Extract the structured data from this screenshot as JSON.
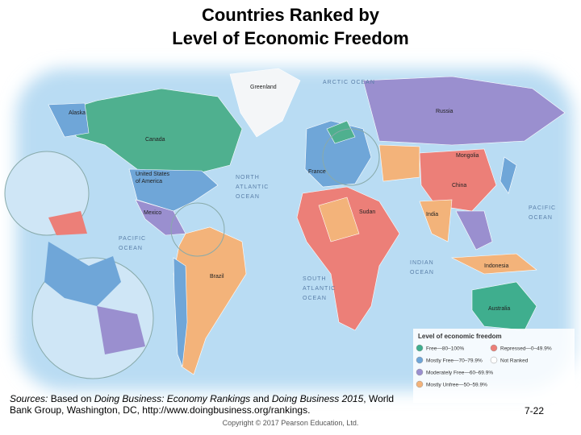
{
  "header": {
    "title_lines": [
      "Countries Ranked by",
      "Level of Economic Freedom"
    ]
  },
  "map": {
    "labels": {
      "arctic": "ARCTIC OCEAN",
      "greenland": "Greenland",
      "alaska": "Alaska",
      "canada": "Canada",
      "usa_1": "United States",
      "usa_2": "of America",
      "north_atlantic": [
        "NORTH",
        "ATLANTIC",
        "OCEAN"
      ],
      "pacific_west": [
        "PACIFIC",
        "OCEAN"
      ],
      "pacific_east": [
        "PACIFIC",
        "OCEAN"
      ],
      "mexico": "Mexico",
      "brazil": "Brazil",
      "south_atlantic": [
        "SOUTH",
        "ATLANTIC",
        "OCEAN"
      ],
      "russia": "Russia",
      "china": "China",
      "india": "India",
      "indian": [
        "INDIAN",
        "OCEAN"
      ],
      "australia": "Australia",
      "indonesia": "Indonesia",
      "sudan": "Sudan",
      "mongolia": "Mongolia",
      "france": "France"
    }
  },
  "legend": {
    "title": "Level of economic freedom",
    "items": [
      {
        "label": "Free—80–100%",
        "color": "#3fae8e"
      },
      {
        "label": "Mostly Free—70–79.9%",
        "color": "#6fa6d8"
      },
      {
        "label": "Moderately Free—60–69.9%",
        "color": "#9a8fcf"
      },
      {
        "label": "Mostly Unfree—50–59.9%",
        "color": "#f3b37a"
      },
      {
        "label": "Repressed—0–49.9%",
        "color": "#ec7f78"
      },
      {
        "label": "Not Ranked",
        "color": "#ffffff"
      }
    ]
  },
  "footer": {
    "sources": [
      {
        "text": "Sources:",
        "italic": true
      },
      {
        "text": " Based on ",
        "italic": false
      },
      {
        "text": "Doing Business: Economy Rankings",
        "italic": true
      },
      {
        "text": " and ",
        "italic": false
      },
      {
        "text": "Doing Business 2015",
        "italic": true
      },
      {
        "text": ", World Bank Group, Washington, DC, http://www.doingbusiness.org/rankings.",
        "italic": false
      }
    ],
    "copyright": "Copyright © 2017 Pearson Education, Ltd.",
    "page": "7-22"
  }
}
